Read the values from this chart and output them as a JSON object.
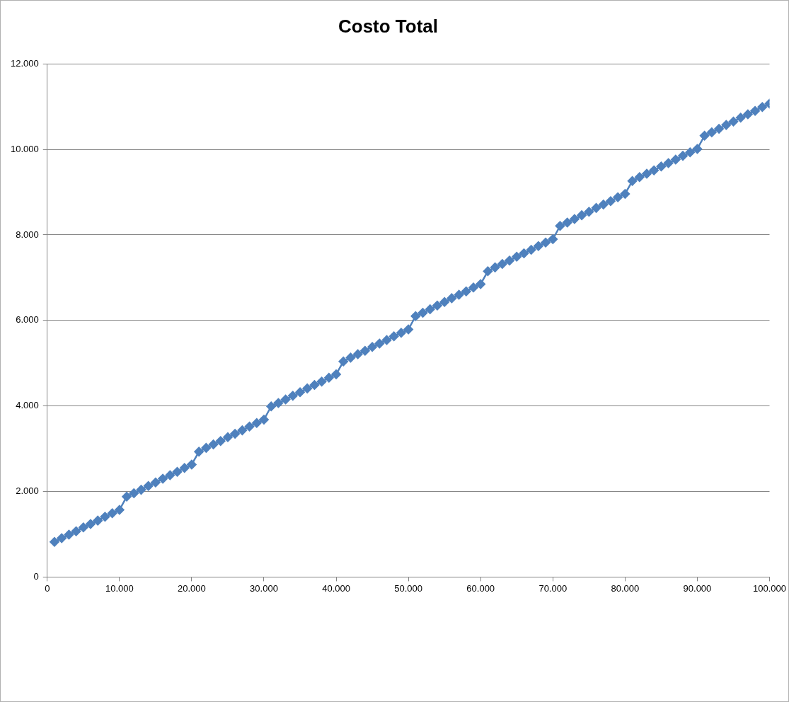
{
  "chart_data": {
    "type": "line",
    "title": "Costo Total",
    "x": [
      1000,
      2000,
      3000,
      4000,
      5000,
      6000,
      7000,
      8000,
      9000,
      10000,
      11000,
      12000,
      13000,
      14000,
      15000,
      16000,
      17000,
      18000,
      19000,
      20000,
      21000,
      22000,
      23000,
      24000,
      25000,
      26000,
      27000,
      28000,
      29000,
      30000,
      31000,
      32000,
      33000,
      34000,
      35000,
      36000,
      37000,
      38000,
      39000,
      40000,
      41000,
      42000,
      43000,
      44000,
      45000,
      46000,
      47000,
      48000,
      49000,
      50000,
      51000,
      52000,
      53000,
      54000,
      55000,
      56000,
      57000,
      58000,
      59000,
      60000,
      61000,
      62000,
      63000,
      64000,
      65000,
      66000,
      67000,
      68000,
      69000,
      70000,
      71000,
      72000,
      73000,
      74000,
      75000,
      76000,
      77000,
      78000,
      79000,
      80000,
      81000,
      82000,
      83000,
      84000,
      85000,
      86000,
      87000,
      88000,
      89000,
      90000,
      91000,
      92000,
      93000,
      94000,
      95000,
      96000,
      97000,
      98000,
      99000,
      100000
    ],
    "series": [
      {
        "color": "#4f81bd",
        "values": [
          820,
          910,
          990,
          1070,
          1160,
          1240,
          1320,
          1410,
          1490,
          1570,
          1880,
          1960,
          2040,
          2130,
          2210,
          2300,
          2380,
          2460,
          2550,
          2630,
          2930,
          3020,
          3100,
          3180,
          3270,
          3350,
          3430,
          3520,
          3600,
          3680,
          3990,
          4070,
          4150,
          4240,
          4320,
          4410,
          4490,
          4570,
          4660,
          4740,
          5040,
          5130,
          5210,
          5290,
          5380,
          5460,
          5540,
          5630,
          5710,
          5790,
          6100,
          6180,
          6260,
          6350,
          6430,
          6520,
          6600,
          6680,
          6770,
          6850,
          7150,
          7240,
          7320,
          7400,
          7490,
          7570,
          7650,
          7740,
          7820,
          7900,
          8210,
          8290,
          8370,
          8460,
          8540,
          8630,
          8710,
          8790,
          8880,
          8960,
          9260,
          9350,
          9430,
          9510,
          9600,
          9680,
          9760,
          9850,
          9930,
          10010,
          10320,
          10400,
          10480,
          10570,
          10650,
          10740,
          10820,
          10900,
          10990,
          11070
        ]
      }
    ],
    "xlim": [
      0,
      100000
    ],
    "xticks": [
      0,
      {
        "value": 10000,
        "label": "10.000"
      },
      {
        "value": 20000,
        "label": "20.000"
      },
      {
        "value": 30000,
        "label": "30.000"
      },
      {
        "value": 40000,
        "label": "40.000"
      },
      {
        "value": 50000,
        "label": "50.000"
      },
      {
        "value": 60000,
        "label": "60.000"
      },
      {
        "value": 70000,
        "label": "70.000"
      },
      {
        "value": 80000,
        "label": "80.000"
      },
      {
        "value": 90000,
        "label": "90.000"
      },
      {
        "value": 100000,
        "label": "100.000"
      }
    ],
    "ylim": [
      0,
      12000
    ],
    "yticks": [
      0,
      {
        "value": 2000,
        "label": "2.000"
      },
      {
        "value": 4000,
        "label": "4.000"
      },
      {
        "value": 6000,
        "label": "6.000"
      },
      {
        "value": 8000,
        "label": "8.000"
      },
      {
        "value": 10000,
        "label": "10.000"
      },
      {
        "value": 12000,
        "label": "12.000"
      }
    ],
    "grid": "y",
    "legend": false,
    "marker": "diamond",
    "line_style": "solid"
  }
}
